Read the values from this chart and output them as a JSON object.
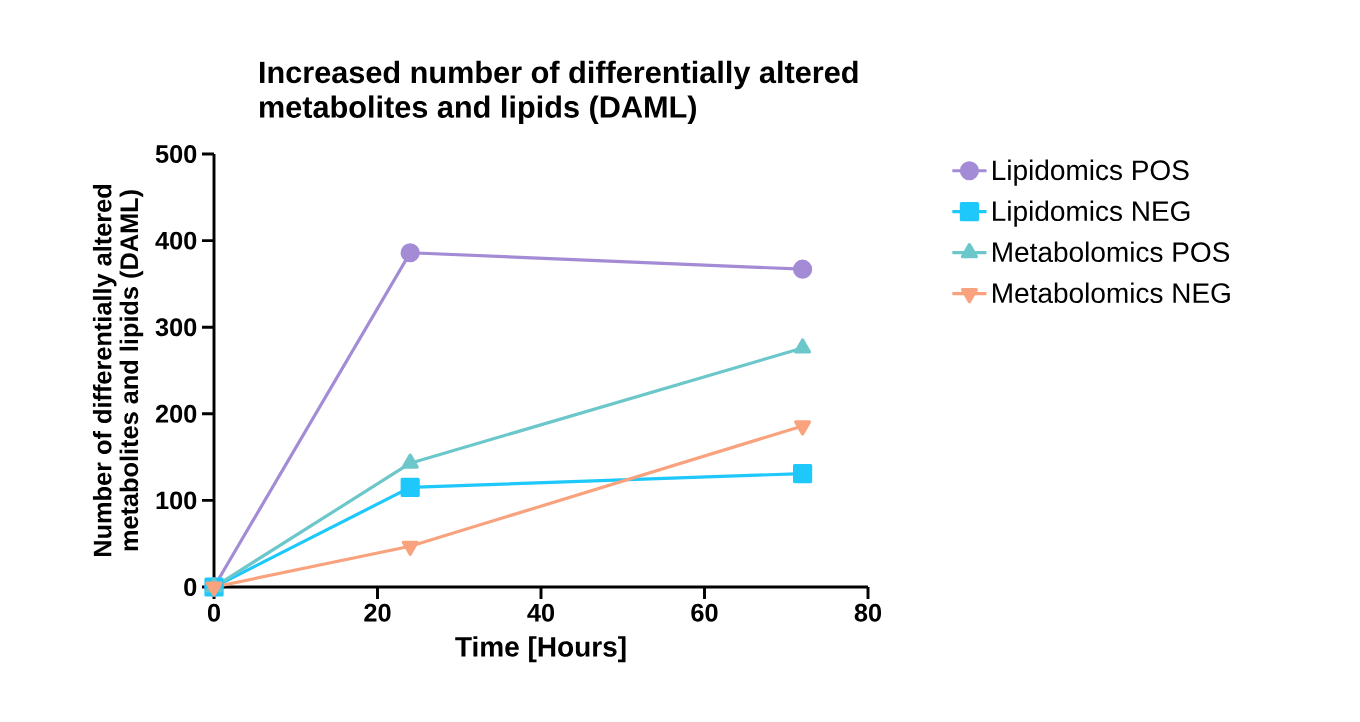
{
  "chart_data": {
    "type": "line",
    "title": "Increased number of differentially altered\nmetabolites and lipids (DAML)",
    "xlabel": "Time [Hours]",
    "ylabel": "Number of differentially altered\nmetabolites and lipids (DAML)",
    "x": [
      0,
      24,
      72
    ],
    "series": [
      {
        "name": "Lipidomics POS",
        "color": "#a48bd6",
        "marker": "circle",
        "values": [
          0,
          386,
          367
        ]
      },
      {
        "name": "Lipidomics NEG",
        "color": "#1ec8fa",
        "marker": "square",
        "values": [
          0,
          115,
          131
        ]
      },
      {
        "name": "Metabolomics POS",
        "color": "#6cc7cb",
        "marker": "triangle",
        "values": [
          0,
          143,
          276
        ]
      },
      {
        "name": "Metabolomics NEG",
        "color": "#f9a27e",
        "marker": "triangle-down",
        "values": [
          0,
          47,
          186
        ]
      }
    ],
    "xlim": [
      0,
      80
    ],
    "ylim": [
      0,
      500
    ],
    "xticks": [
      0,
      20,
      40,
      60,
      80
    ],
    "yticks": [
      0,
      100,
      200,
      300,
      400,
      500
    ],
    "grid": false,
    "legend": "right",
    "line_style": "solid"
  }
}
